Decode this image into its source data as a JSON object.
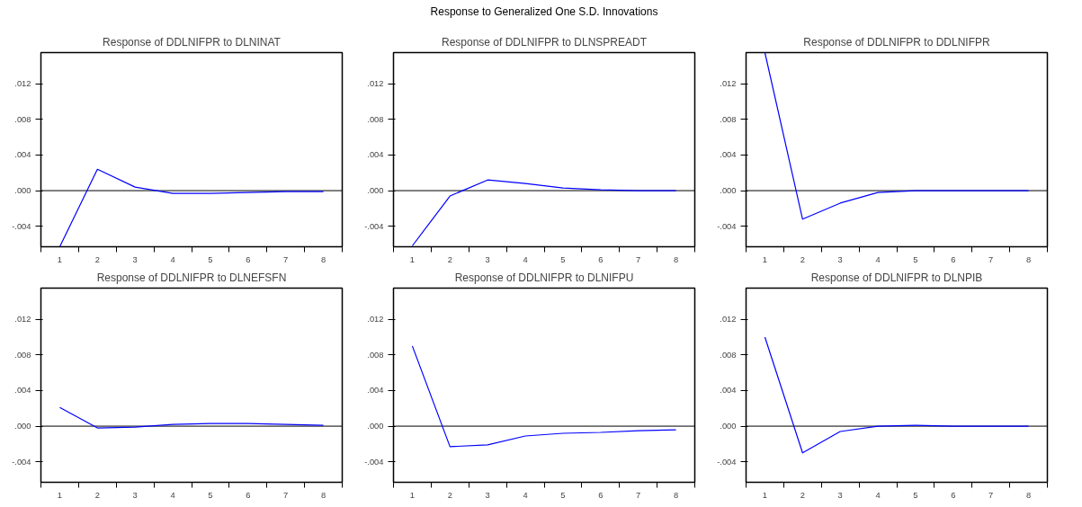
{
  "chart_data": [
    {
      "type": "line",
      "title": "Response of DDLNIFPR to DLNINAT",
      "annotations": [
        "Response to Generalized One S.D. Innovations"
      ],
      "categories": [
        "1",
        "2",
        "3",
        "4",
        "5",
        "6",
        "7",
        "8"
      ],
      "series": [
        {
          "color": "#0000ff",
          "values": [
            -0.0063,
            0.0024,
            0.0004,
            -0.0003,
            -0.0003,
            -0.0002,
            -0.0001,
            -0.0001
          ]
        }
      ],
      "ylim": [
        -0.0063,
        0.0155
      ],
      "yticks": [
        {
          "value": -0.004,
          "label": "-.004"
        },
        {
          "value": 0.0,
          "label": ".000"
        },
        {
          "value": 0.004,
          "label": ".004"
        },
        {
          "value": 0.008,
          "label": ".008"
        },
        {
          "value": 0.012,
          "label": ".012"
        }
      ],
      "ref_lines": [
        {
          "axis": "y",
          "value": 0,
          "color": "#000000"
        }
      ],
      "grid": false
    },
    {
      "type": "line",
      "title": "Response of DDLNIFPR to DLNSPREADT",
      "categories": [
        "1",
        "2",
        "3",
        "4",
        "5",
        "6",
        "7",
        "8"
      ],
      "series": [
        {
          "color": "#0000ff",
          "values": [
            -0.0062,
            -0.0006,
            0.0012,
            0.0008,
            0.0003,
            0.0001,
            0.0,
            0.0
          ]
        }
      ],
      "ylim": [
        -0.0063,
        0.0155
      ],
      "yticks": [
        {
          "value": -0.004,
          "label": "-.004"
        },
        {
          "value": 0.0,
          "label": ".000"
        },
        {
          "value": 0.004,
          "label": ".004"
        },
        {
          "value": 0.008,
          "label": ".008"
        },
        {
          "value": 0.012,
          "label": ".012"
        }
      ],
      "ref_lines": [
        {
          "axis": "y",
          "value": 0,
          "color": "#000000"
        }
      ],
      "grid": false
    },
    {
      "type": "line",
      "title": "Response of DDLNIFPR to DDLNIFPR",
      "categories": [
        "1",
        "2",
        "3",
        "4",
        "5",
        "6",
        "7",
        "8"
      ],
      "series": [
        {
          "color": "#0000ff",
          "values": [
            0.0155,
            -0.0032,
            -0.0014,
            -0.0002,
            0.0,
            0.0,
            0.0,
            0.0
          ]
        }
      ],
      "ylim": [
        -0.0063,
        0.0155
      ],
      "yticks": [
        {
          "value": -0.004,
          "label": "-.004"
        },
        {
          "value": 0.0,
          "label": ".000"
        },
        {
          "value": 0.004,
          "label": ".004"
        },
        {
          "value": 0.008,
          "label": ".008"
        },
        {
          "value": 0.012,
          "label": ".012"
        }
      ],
      "ref_lines": [
        {
          "axis": "y",
          "value": 0,
          "color": "#000000"
        }
      ],
      "grid": false
    },
    {
      "type": "line",
      "title": "Response of DDLNIFPR to DLNEFSFN",
      "categories": [
        "1",
        "2",
        "3",
        "4",
        "5",
        "6",
        "7",
        "8"
      ],
      "series": [
        {
          "color": "#0000ff",
          "values": [
            0.0021,
            -0.0002,
            -0.0001,
            0.0002,
            0.0003,
            0.0003,
            0.0002,
            0.0001
          ]
        }
      ],
      "ylim": [
        -0.0063,
        0.0155
      ],
      "yticks": [
        {
          "value": -0.004,
          "label": "-.004"
        },
        {
          "value": 0.0,
          "label": ".000"
        },
        {
          "value": 0.004,
          "label": ".004"
        },
        {
          "value": 0.008,
          "label": ".008"
        },
        {
          "value": 0.012,
          "label": ".012"
        }
      ],
      "ref_lines": [
        {
          "axis": "y",
          "value": 0,
          "color": "#000000"
        }
      ],
      "grid": false
    },
    {
      "type": "line",
      "title": "Response of DDLNIFPR to DLNIFPU",
      "categories": [
        "1",
        "2",
        "3",
        "4",
        "5",
        "6",
        "7",
        "8"
      ],
      "series": [
        {
          "color": "#0000ff",
          "values": [
            0.009,
            -0.0023,
            -0.0021,
            -0.0011,
            -0.0008,
            -0.0007,
            -0.0005,
            -0.0004
          ]
        }
      ],
      "ylim": [
        -0.0063,
        0.0155
      ],
      "yticks": [
        {
          "value": -0.004,
          "label": "-.004"
        },
        {
          "value": 0.0,
          "label": ".000"
        },
        {
          "value": 0.004,
          "label": ".004"
        },
        {
          "value": 0.008,
          "label": ".008"
        },
        {
          "value": 0.012,
          "label": ".012"
        }
      ],
      "ref_lines": [
        {
          "axis": "y",
          "value": 0,
          "color": "#000000"
        }
      ],
      "grid": false
    },
    {
      "type": "line",
      "title": "Response of DDLNIFPR to DLNPIB",
      "categories": [
        "1",
        "2",
        "3",
        "4",
        "5",
        "6",
        "7",
        "8"
      ],
      "series": [
        {
          "color": "#0000ff",
          "values": [
            0.01,
            -0.003,
            -0.0006,
            0.0,
            0.0001,
            0.0,
            0.0,
            0.0
          ]
        }
      ],
      "ylim": [
        -0.0063,
        0.0155
      ],
      "yticks": [
        {
          "value": -0.004,
          "label": "-.004"
        },
        {
          "value": 0.0,
          "label": ".000"
        },
        {
          "value": 0.004,
          "label": ".004"
        },
        {
          "value": 0.008,
          "label": ".008"
        },
        {
          "value": 0.012,
          "label": ".012"
        }
      ],
      "ref_lines": [
        {
          "axis": "y",
          "value": 0,
          "color": "#000000"
        }
      ],
      "grid": false
    }
  ]
}
